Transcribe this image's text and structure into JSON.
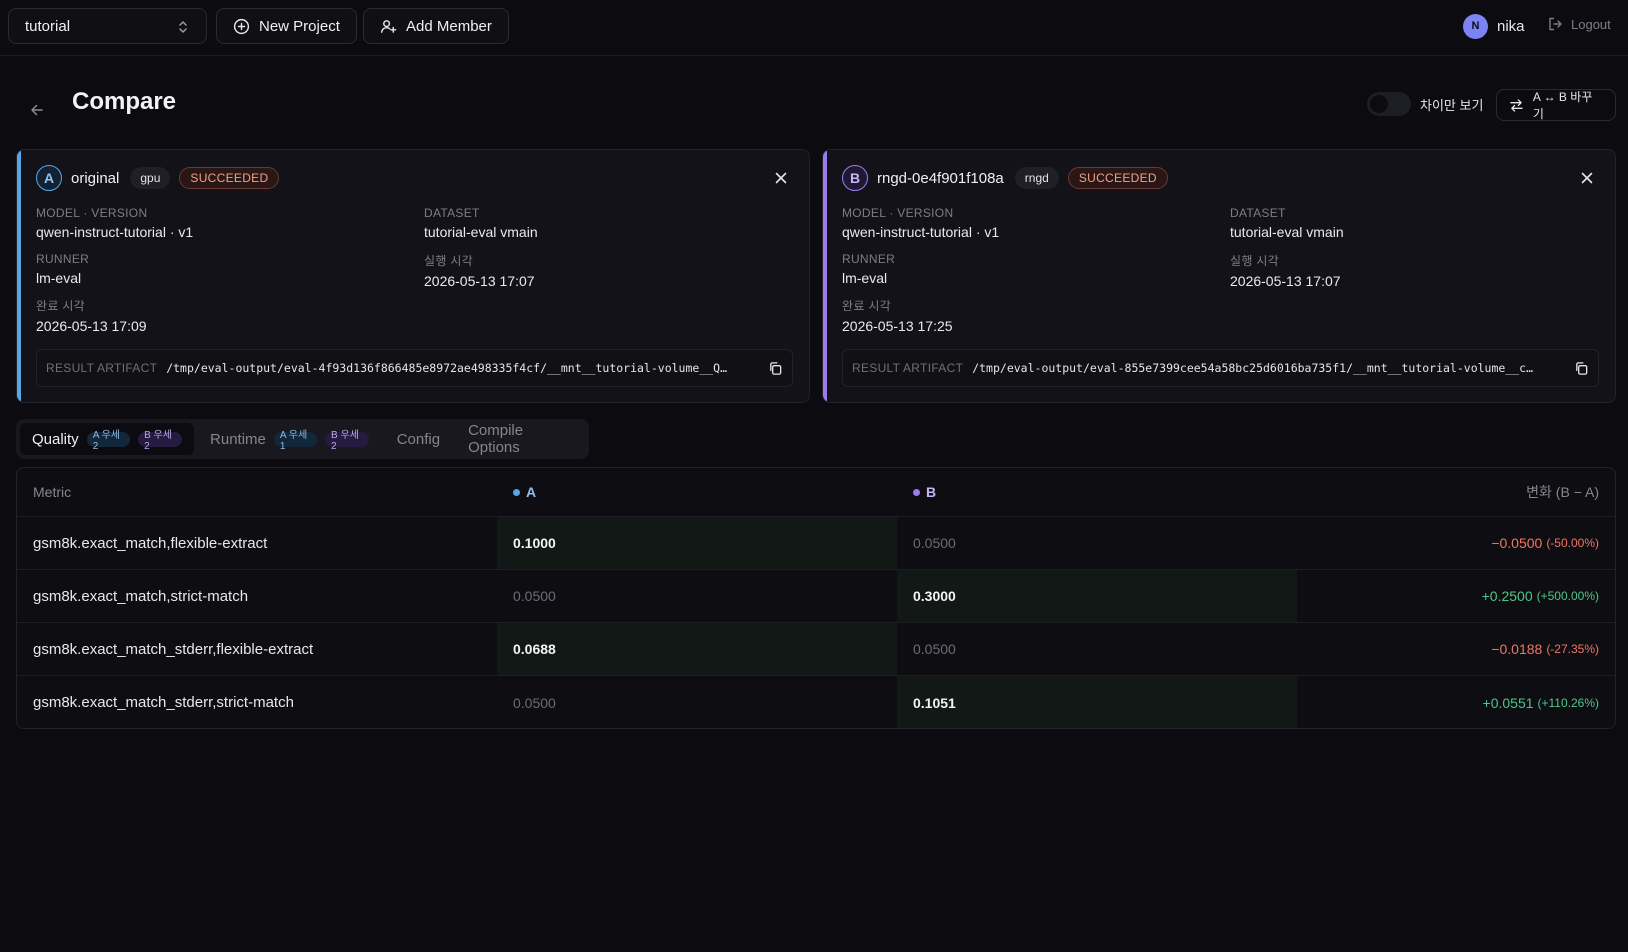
{
  "topbar": {
    "project": "tutorial",
    "new_project": "New Project",
    "add_member": "Add Member",
    "user_initial": "N",
    "username": "nika",
    "logout": "Logout"
  },
  "header": {
    "title": "Compare",
    "diff_only_label": "차이만 보기",
    "diff_only_on": false,
    "swap_label": "A ↔ B 바꾸기"
  },
  "runs": [
    {
      "slot": "A",
      "name": "original",
      "tag": "gpu",
      "status": "SUCCEEDED",
      "accent": "#58a6e6",
      "model_version_label": "MODEL · VERSION",
      "model_version": "qwen-instruct-tutorial · v1",
      "dataset_label": "DATASET",
      "dataset": "tutorial-eval vmain",
      "runner_label": "RUNNER",
      "runner": "lm-eval",
      "started_label": "실행 시각",
      "started": "2026-05-13 17:07",
      "finished_label": "완료 시각",
      "finished": "2026-05-13 17:09",
      "artifact_label": "RESULT ARTIFACT",
      "artifact": "/tmp/eval-output/eval-4f93d136f866485e8972ae498335f4cf/__mnt__tutorial-volume__Q…"
    },
    {
      "slot": "B",
      "name": "rngd-0e4f901f108a",
      "tag": "rngd",
      "status": "SUCCEEDED",
      "accent": "#9b7cf0",
      "model_version_label": "MODEL · VERSION",
      "model_version": "qwen-instruct-tutorial · v1",
      "dataset_label": "DATASET",
      "dataset": "tutorial-eval vmain",
      "runner_label": "RUNNER",
      "runner": "lm-eval",
      "started_label": "실행 시각",
      "started": "2026-05-13 17:07",
      "finished_label": "완료 시각",
      "finished": "2026-05-13 17:25",
      "artifact_label": "RESULT ARTIFACT",
      "artifact": "/tmp/eval-output/eval-855e7399cee54a58bc25d6016ba735f1/__mnt__tutorial-volume__c…"
    }
  ],
  "tabs": [
    {
      "label": "Quality",
      "a_badge": "A 우세 2",
      "b_badge": "B 우세 2",
      "active": true
    },
    {
      "label": "Runtime",
      "a_badge": "A 우세 1",
      "b_badge": "B 우세 2",
      "active": false
    },
    {
      "label": "Config",
      "active": false
    },
    {
      "label": "Compile Options",
      "active": false
    }
  ],
  "table": {
    "headers": {
      "metric": "Metric",
      "a": "A",
      "b": "B",
      "delta": "변화 (B − A)"
    },
    "rows": [
      {
        "metric": "gsm8k.exact_match,flexible-extract",
        "a": "0.1000",
        "b": "0.0500",
        "winner": "a",
        "delta": "−0.0500",
        "pct": "(-50.00%)",
        "sign": "neg"
      },
      {
        "metric": "gsm8k.exact_match,strict-match",
        "a": "0.0500",
        "b": "0.3000",
        "winner": "b",
        "delta": "+0.2500",
        "pct": "(+500.00%)",
        "sign": "pos"
      },
      {
        "metric": "gsm8k.exact_match_stderr,flexible-extract",
        "a": "0.0688",
        "b": "0.0500",
        "winner": "a",
        "delta": "−0.0188",
        "pct": "(-27.35%)",
        "sign": "neg"
      },
      {
        "metric": "gsm8k.exact_match_stderr,strict-match",
        "a": "0.0500",
        "b": "0.1051",
        "winner": "b",
        "delta": "+0.0551",
        "pct": "(+110.26%)",
        "sign": "pos"
      }
    ]
  },
  "colors": {
    "a_dot": "#58a6e6",
    "b_dot": "#9b7cf0"
  }
}
